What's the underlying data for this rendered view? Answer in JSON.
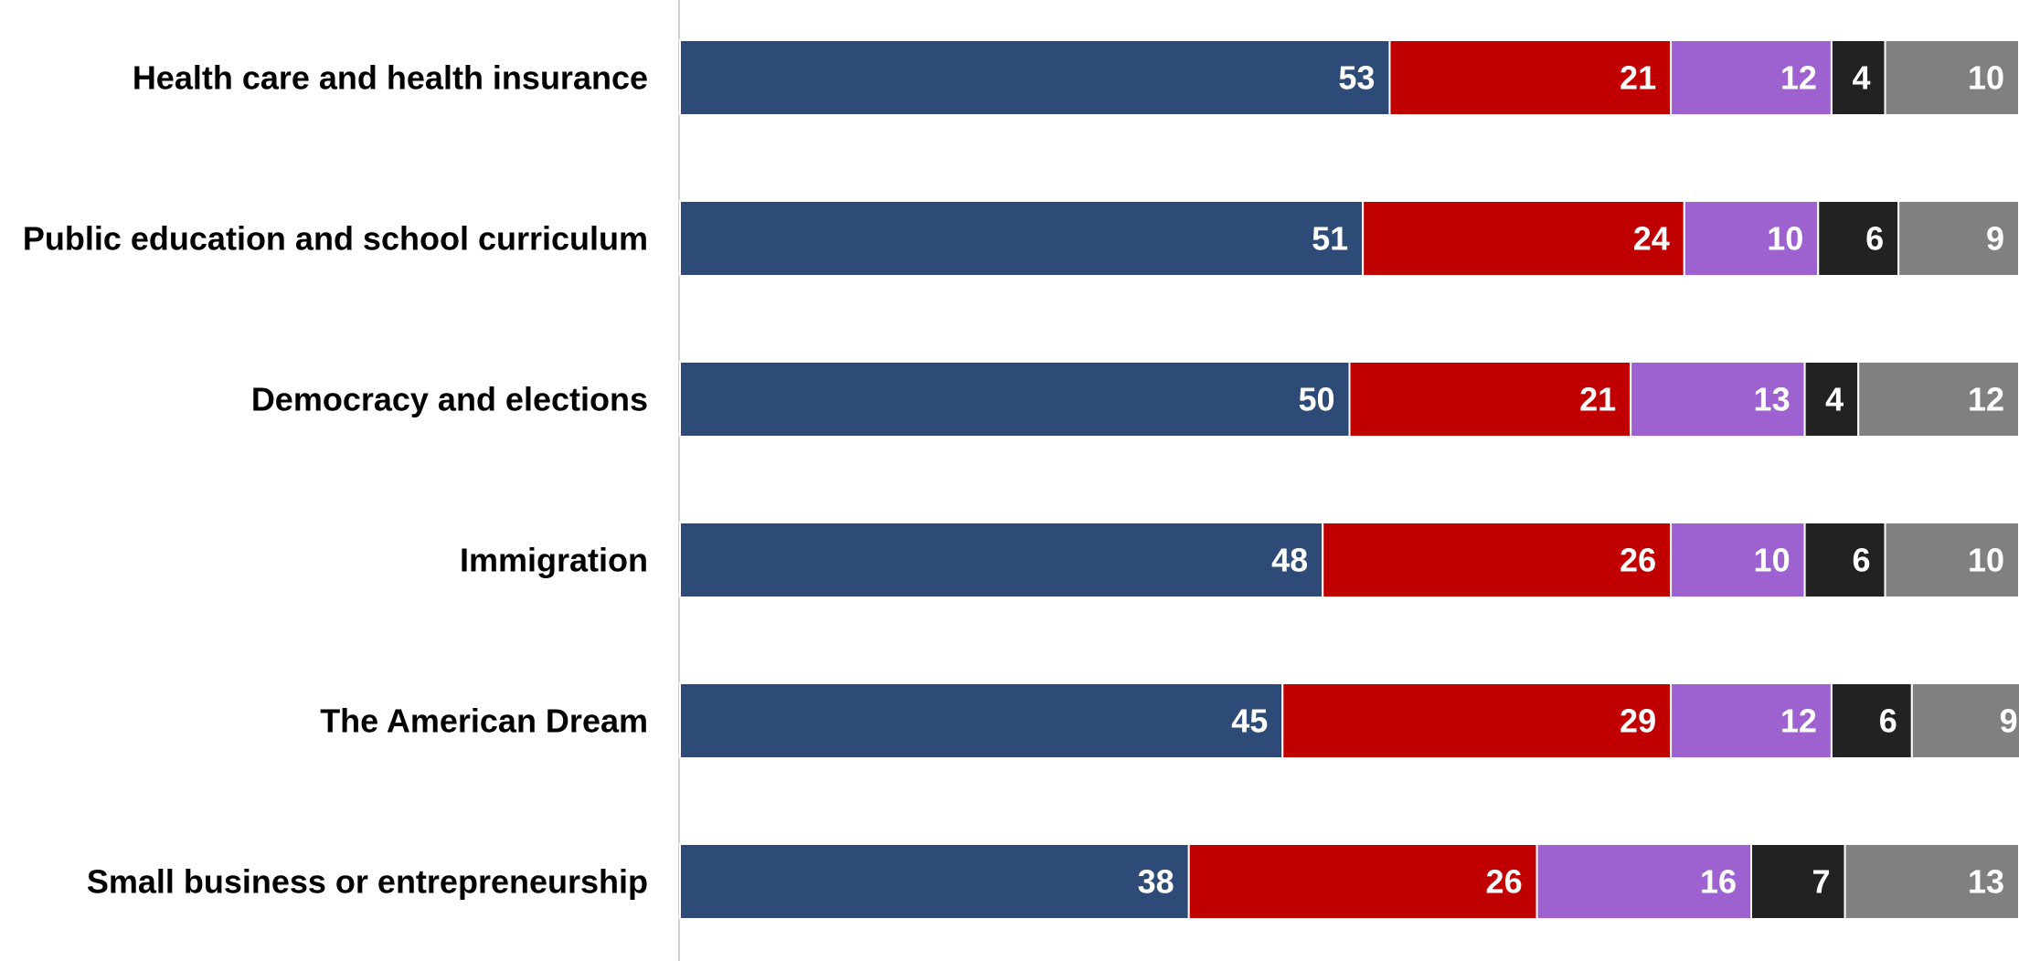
{
  "chart_data": {
    "type": "bar",
    "orientation": "horizontal",
    "stacked": true,
    "categories": [
      "Health care and health insurance",
      "Public education and school curriculum",
      "Democracy and elections",
      "Immigration",
      "The American Dream",
      "Small business or entrepreneurship"
    ],
    "series": [
      {
        "color": "#2d4b76",
        "values": [
          53,
          51,
          50,
          48,
          45,
          38
        ]
      },
      {
        "color": "#c00000",
        "values": [
          21,
          24,
          21,
          26,
          29,
          26
        ]
      },
      {
        "color": "#9e61d0",
        "values": [
          12,
          10,
          13,
          10,
          12,
          16
        ]
      },
      {
        "color": "#222222",
        "values": [
          4,
          6,
          4,
          6,
          6,
          7
        ]
      },
      {
        "color": "#808080",
        "values": [
          10,
          9,
          12,
          10,
          9,
          13
        ]
      }
    ],
    "title": "",
    "xlabel": "",
    "ylabel": "",
    "xlim": [
      0,
      100
    ],
    "grid": false,
    "legend": "none"
  }
}
